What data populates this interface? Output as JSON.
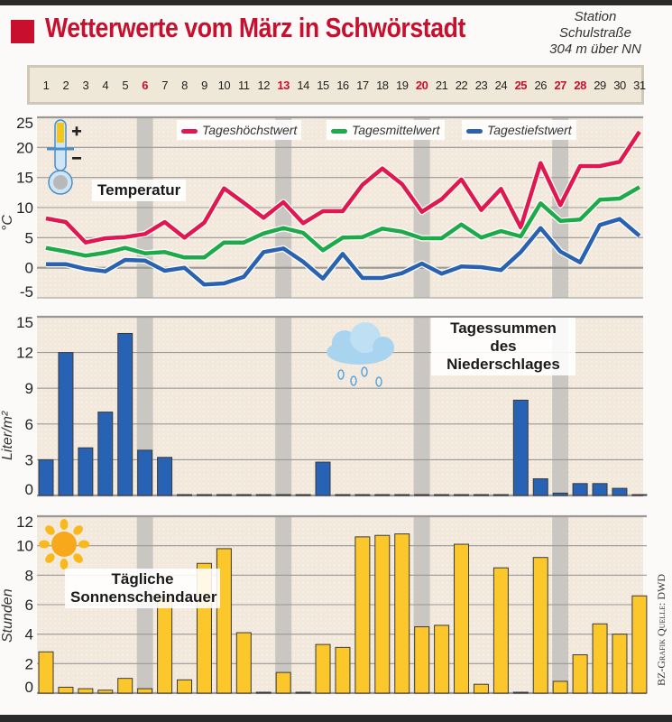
{
  "header": {
    "title": "Wetterwerte vom März in Schwörstadt",
    "station_line1": "Station",
    "station_line2": "Schulstraße",
    "station_line3": "304 m über NN"
  },
  "days": {
    "labels": [
      "1",
      "2",
      "3",
      "4",
      "5",
      "6",
      "7",
      "8",
      "9",
      "10",
      "11",
      "12",
      "13",
      "14",
      "15",
      "16",
      "17",
      "18",
      "19",
      "20",
      "21",
      "22",
      "23",
      "24",
      "25",
      "26",
      "27",
      "28",
      "29",
      "30",
      "31"
    ],
    "highlighted": [
      "6",
      "13",
      "20",
      "25",
      "27",
      "28"
    ],
    "highlight_color": "#c8102e"
  },
  "footer": {
    "credit": "BZ-Grafik Quelle: DWD"
  },
  "colors": {
    "max": "#e0184f",
    "mean": "#1faa4a",
    "min": "#2a62b0",
    "precip": "#2762b4",
    "sun": "#fcc72a",
    "plot_bg": "#f2e9dc",
    "weekend_band": "#c3c1bd",
    "grid": "#9a9894"
  },
  "chart_data": [
    {
      "type": "line",
      "title": "Temperatur",
      "xlabel": "",
      "ylabel": "°C",
      "x": [
        1,
        2,
        3,
        4,
        5,
        6,
        7,
        8,
        9,
        10,
        11,
        12,
        13,
        14,
        15,
        16,
        17,
        18,
        19,
        20,
        21,
        22,
        23,
        24,
        25,
        26,
        27,
        28,
        29,
        30,
        31
      ],
      "ylim": [
        -5,
        25
      ],
      "yticks": [
        -5,
        0,
        5,
        10,
        15,
        20,
        25
      ],
      "grid": true,
      "legend_position": "top",
      "shaded_days": [
        6,
        13,
        20,
        27
      ],
      "series": [
        {
          "name": "Tageshöchstwert",
          "color_key": "max",
          "values": [
            8.2,
            7.6,
            4.2,
            4.9,
            5.1,
            5.6,
            7.6,
            5.0,
            7.5,
            13.2,
            10.8,
            8.3,
            10.9,
            7.4,
            9.4,
            9.4,
            13.8,
            16.5,
            13.9,
            9.3,
            11.4,
            14.7,
            9.6,
            13.1,
            6.7,
            17.4,
            10.4,
            16.9,
            16.9,
            17.6,
            22.6
          ]
        },
        {
          "name": "Tagesmittelwert",
          "color_key": "mean",
          "values": [
            3.3,
            2.7,
            2.0,
            2.5,
            3.3,
            2.4,
            2.6,
            1.7,
            1.7,
            4.2,
            4.2,
            5.7,
            6.6,
            5.8,
            2.9,
            5.0,
            5.1,
            6.5,
            6.0,
            4.9,
            4.9,
            7.2,
            5.0,
            6.1,
            5.2,
            10.7,
            7.8,
            8.0,
            11.3,
            11.5,
            13.4
          ]
        },
        {
          "name": "Tagestiefstwert",
          "color_key": "min",
          "values": [
            0.6,
            0.6,
            -0.2,
            -0.6,
            1.3,
            1.2,
            -0.5,
            0.0,
            -2.8,
            -2.6,
            -1.5,
            2.6,
            3.2,
            1.0,
            -1.8,
            2.3,
            -1.7,
            -1.7,
            -0.9,
            0.7,
            -1.0,
            0.2,
            0.1,
            -0.4,
            2.6,
            6.6,
            2.7,
            0.9,
            7.1,
            8.1,
            5.3
          ]
        }
      ]
    },
    {
      "type": "bar",
      "title": "Tagessummen des Niederschlages",
      "xlabel": "",
      "ylabel": "Liter/m²",
      "x": [
        1,
        2,
        3,
        4,
        5,
        6,
        7,
        8,
        9,
        10,
        11,
        12,
        13,
        14,
        15,
        16,
        17,
        18,
        19,
        20,
        21,
        22,
        23,
        24,
        25,
        26,
        27,
        28,
        29,
        30,
        31
      ],
      "ylim": [
        0,
        15
      ],
      "yticks": [
        0,
        3,
        6,
        9,
        12,
        15
      ],
      "grid": true,
      "shaded_days": [
        6,
        13,
        20,
        27
      ],
      "values": [
        3.0,
        12.0,
        4.0,
        7.0,
        13.6,
        3.8,
        3.2,
        0,
        0,
        0,
        0,
        0,
        0,
        0,
        2.8,
        0,
        0,
        0,
        0,
        0,
        0,
        0,
        0,
        0,
        8.0,
        1.4,
        0.2,
        1.0,
        1.0,
        0.6,
        0
      ]
    },
    {
      "type": "bar",
      "title": "Tägliche Sonnenscheindauer",
      "xlabel": "",
      "ylabel": "Stunden",
      "x": [
        1,
        2,
        3,
        4,
        5,
        6,
        7,
        8,
        9,
        10,
        11,
        12,
        13,
        14,
        15,
        16,
        17,
        18,
        19,
        20,
        21,
        22,
        23,
        24,
        25,
        26,
        27,
        28,
        29,
        30,
        31
      ],
      "ylim": [
        0,
        12
      ],
      "yticks": [
        0,
        2,
        4,
        6,
        8,
        10,
        12
      ],
      "grid": true,
      "shaded_days": [
        6,
        13,
        20,
        27
      ],
      "values": [
        2.8,
        0.4,
        0.3,
        0.2,
        1.0,
        0.3,
        6.5,
        0.9,
        8.8,
        9.8,
        4.1,
        0,
        1.4,
        0,
        3.3,
        3.1,
        10.6,
        10.7,
        10.8,
        4.5,
        4.6,
        10.1,
        0.6,
        8.5,
        0,
        9.2,
        0.8,
        2.6,
        4.7,
        4.0,
        6.6
      ]
    }
  ]
}
